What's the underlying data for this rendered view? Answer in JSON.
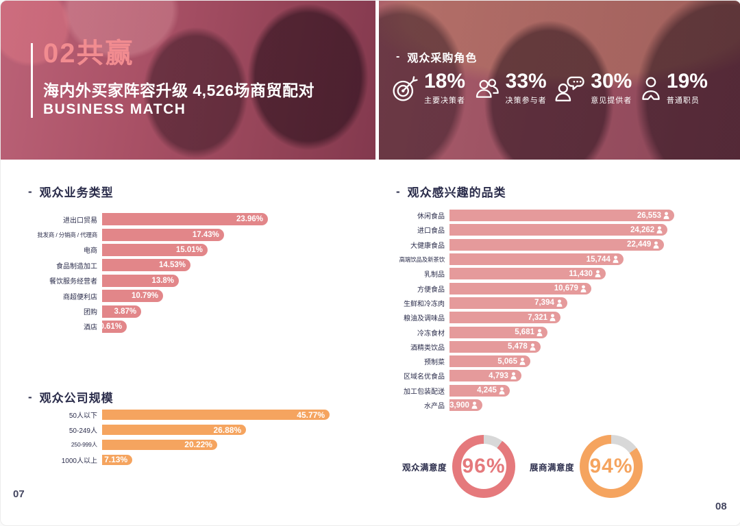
{
  "ui": {
    "dash": "-",
    "page_no_left": "07",
    "page_no_right": "08",
    "colors": {
      "navy_text": "#2B2D4B",
      "hero_title_salmon": "#F28C90",
      "hero_overlay_rose": "#9b5162",
      "bar_pink_left": "#E28689",
      "bar_pink_right": "#E59A9B",
      "bar_orange": "#F5A45F",
      "donut_pink": "#E5797C",
      "donut_orange": "#F5A45F",
      "donut_track_gray": "#D8D8D8",
      "white": "#FFFFFF"
    }
  },
  "hero": {
    "title": "02共赢",
    "subtitle": "海内外买家阵容升级 4,526场商贸配对",
    "subtitle_en": "BUSINESS MATCH",
    "roles": {
      "heading": "观众采购角色",
      "items": [
        {
          "icon": "target-icon",
          "value": "18%",
          "label": "主要决策者"
        },
        {
          "icon": "people-group-icon",
          "value": "33%",
          "label": "决策参与者"
        },
        {
          "icon": "person-chat-icon",
          "value": "30%",
          "label": "意见提供者"
        },
        {
          "icon": "person-icon",
          "value": "19%",
          "label": "普通职员"
        }
      ]
    }
  },
  "chart_data": [
    {
      "type": "bar",
      "orientation": "horizontal",
      "title": "观众业务类型",
      "categories": [
        "进出口贸易",
        "批发商 / 分销商 / 代理商",
        "电商",
        "食品制造加工",
        "餐饮服务经营者",
        "商超便利店",
        "团购",
        "酒店"
      ],
      "values": [
        23.96,
        17.43,
        15.01,
        14.53,
        13.8,
        10.79,
        3.87,
        0.61
      ],
      "value_labels": [
        "23.96%",
        "17.43%",
        "15.01%",
        "14.53%",
        "13.8%",
        "10.79%",
        "3.87%",
        "0.61%"
      ],
      "unit": "%",
      "bar_color": "#E28689",
      "bar_display_pct": [
        100,
        73.5,
        63.6,
        53.3,
        46.3,
        36.8,
        23.6,
        14.9
      ]
    },
    {
      "type": "bar",
      "orientation": "horizontal",
      "title": "观众公司规模",
      "categories": [
        "50人以下",
        "50-249人",
        "250-999人",
        "1000人以上"
      ],
      "values": [
        45.77,
        26.88,
        20.22,
        7.13
      ],
      "value_labels": [
        "45.77%",
        "26.88%",
        "20.22%",
        "7.13%"
      ],
      "unit": "%",
      "bar_color": "#F5A45F",
      "bar_display_pct": [
        100,
        63.3,
        50.6,
        13.3
      ]
    },
    {
      "type": "bar",
      "orientation": "horizontal",
      "title": "观众感兴趣的品类",
      "categories": [
        "休闲食品",
        "进口食品",
        "大健康食品",
        "高端饮品及新茶饮",
        "乳制品",
        "方便食品",
        "生鲜和冷冻肉",
        "粮油及调味品",
        "冷冻食材",
        "酒精类饮品",
        "预制菜",
        "区域名优食品",
        "加工包装配送",
        "水产品"
      ],
      "values": [
        26553,
        24262,
        22449,
        15744,
        11430,
        10679,
        7394,
        7321,
        5681,
        5478,
        5065,
        4793,
        4245,
        3900
      ],
      "value_labels": [
        "26,553",
        "24,262",
        "22,449",
        "15,744",
        "11,430",
        "10,679",
        "7,394",
        "7,321",
        "5,681",
        "5,478",
        "5,065",
        "4,793",
        "4,245",
        "3,900"
      ],
      "unit": "人",
      "value_icon": "person-icon",
      "bar_color": "#E59A9B",
      "bar_display_pct": [
        100,
        97,
        95.5,
        77.4,
        69.5,
        63.1,
        52.4,
        49.4,
        43.6,
        40.5,
        36,
        32,
        26.8,
        14.6
      ]
    },
    {
      "type": "donut",
      "title": "观众满意度",
      "value": 96,
      "value_label": "96%",
      "color": "#E5797C",
      "track_color": "#D8D8D8"
    },
    {
      "type": "donut",
      "title": "展商满意度",
      "value": 94,
      "value_label": "94%",
      "color": "#F5A45F",
      "track_color": "#D8D8D8"
    }
  ]
}
